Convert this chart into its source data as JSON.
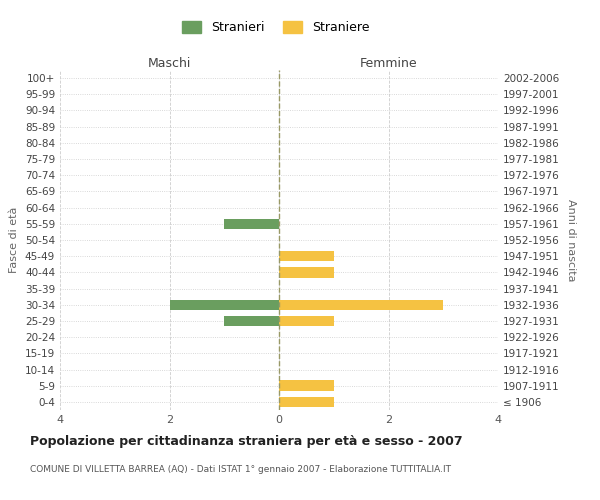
{
  "age_groups": [
    "100+",
    "95-99",
    "90-94",
    "85-89",
    "80-84",
    "75-79",
    "70-74",
    "65-69",
    "60-64",
    "55-59",
    "50-54",
    "45-49",
    "40-44",
    "35-39",
    "30-34",
    "25-29",
    "20-24",
    "15-19",
    "10-14",
    "5-9",
    "0-4"
  ],
  "birth_years": [
    "≤ 1906",
    "1907-1911",
    "1912-1916",
    "1917-1921",
    "1922-1926",
    "1927-1931",
    "1932-1936",
    "1937-1941",
    "1942-1946",
    "1947-1951",
    "1952-1956",
    "1957-1961",
    "1962-1966",
    "1967-1971",
    "1972-1976",
    "1977-1981",
    "1982-1986",
    "1987-1991",
    "1992-1996",
    "1997-2001",
    "2002-2006"
  ],
  "maschi_stranieri": [
    0,
    0,
    0,
    0,
    0,
    0,
    0,
    0,
    0,
    1,
    0,
    0,
    0,
    0,
    2,
    1,
    0,
    0,
    0,
    0,
    0
  ],
  "femmine_straniere": [
    0,
    0,
    0,
    0,
    0,
    0,
    0,
    0,
    0,
    0,
    0,
    1,
    1,
    0,
    3,
    1,
    0,
    0,
    0,
    1,
    1
  ],
  "color_maschi": "#6a9e5f",
  "color_femmine": "#f5c242",
  "title": "Popolazione per cittadinanza straniera per età e sesso - 2007",
  "subtitle": "COMUNE DI VILLETTA BARREA (AQ) - Dati ISTAT 1° gennaio 2007 - Elaborazione TUTTITALIA.IT",
  "xlabel_left": "Maschi",
  "xlabel_right": "Femmine",
  "ylabel_left": "Fasce di età",
  "ylabel_right": "Anni di nascita",
  "legend_maschi": "Stranieri",
  "legend_femmine": "Straniere",
  "xlim": 4,
  "background_color": "#ffffff",
  "grid_color": "#cccccc"
}
